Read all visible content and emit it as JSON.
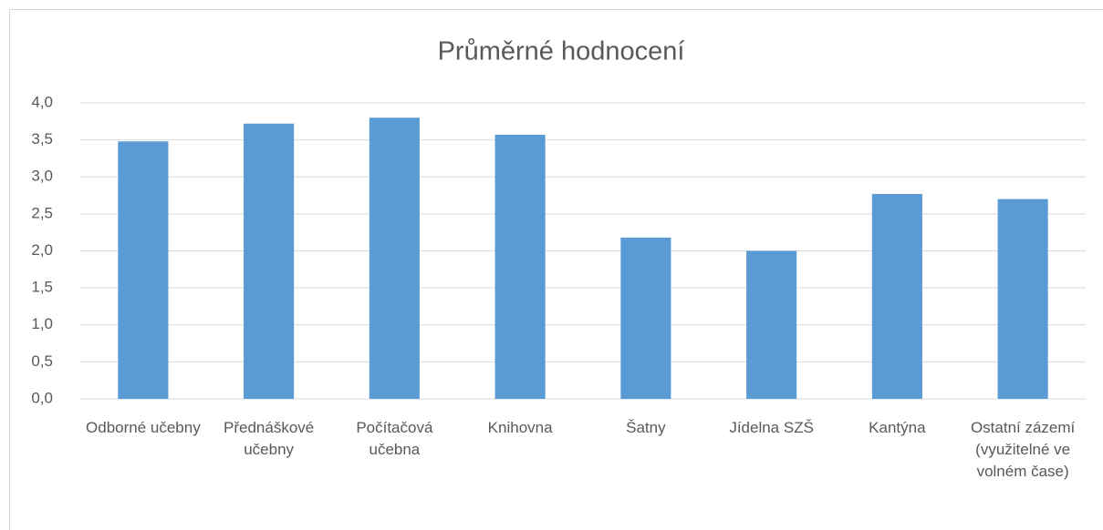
{
  "chart_data": {
    "type": "bar",
    "title": "Průměrné hodnocení",
    "categories": [
      "Odborné učebny",
      "Přednáškové učebny",
      "Počítačová učebna",
      "Knihovna",
      "Šatny",
      "Jídelna SZŠ",
      "Kantýna",
      "Ostatní zázemí (využitelné ve volném čase)"
    ],
    "values": [
      3.48,
      3.72,
      3.8,
      3.57,
      2.18,
      2.0,
      2.77,
      2.7
    ],
    "color": "#5b9bd5",
    "ylim": [
      0,
      4
    ],
    "yticks": [
      {
        "value": 0,
        "label": "0,0"
      },
      {
        "value": 0.5,
        "label": "0,5"
      },
      {
        "value": 1,
        "label": "1,0"
      },
      {
        "value": 1.5,
        "label": "1,5"
      },
      {
        "value": 2,
        "label": "2,0"
      },
      {
        "value": 2.5,
        "label": "2,5"
      },
      {
        "value": 3,
        "label": "3,0"
      },
      {
        "value": 3.5,
        "label": "3,5"
      },
      {
        "value": 4,
        "label": "4,0"
      }
    ],
    "grid": true
  }
}
